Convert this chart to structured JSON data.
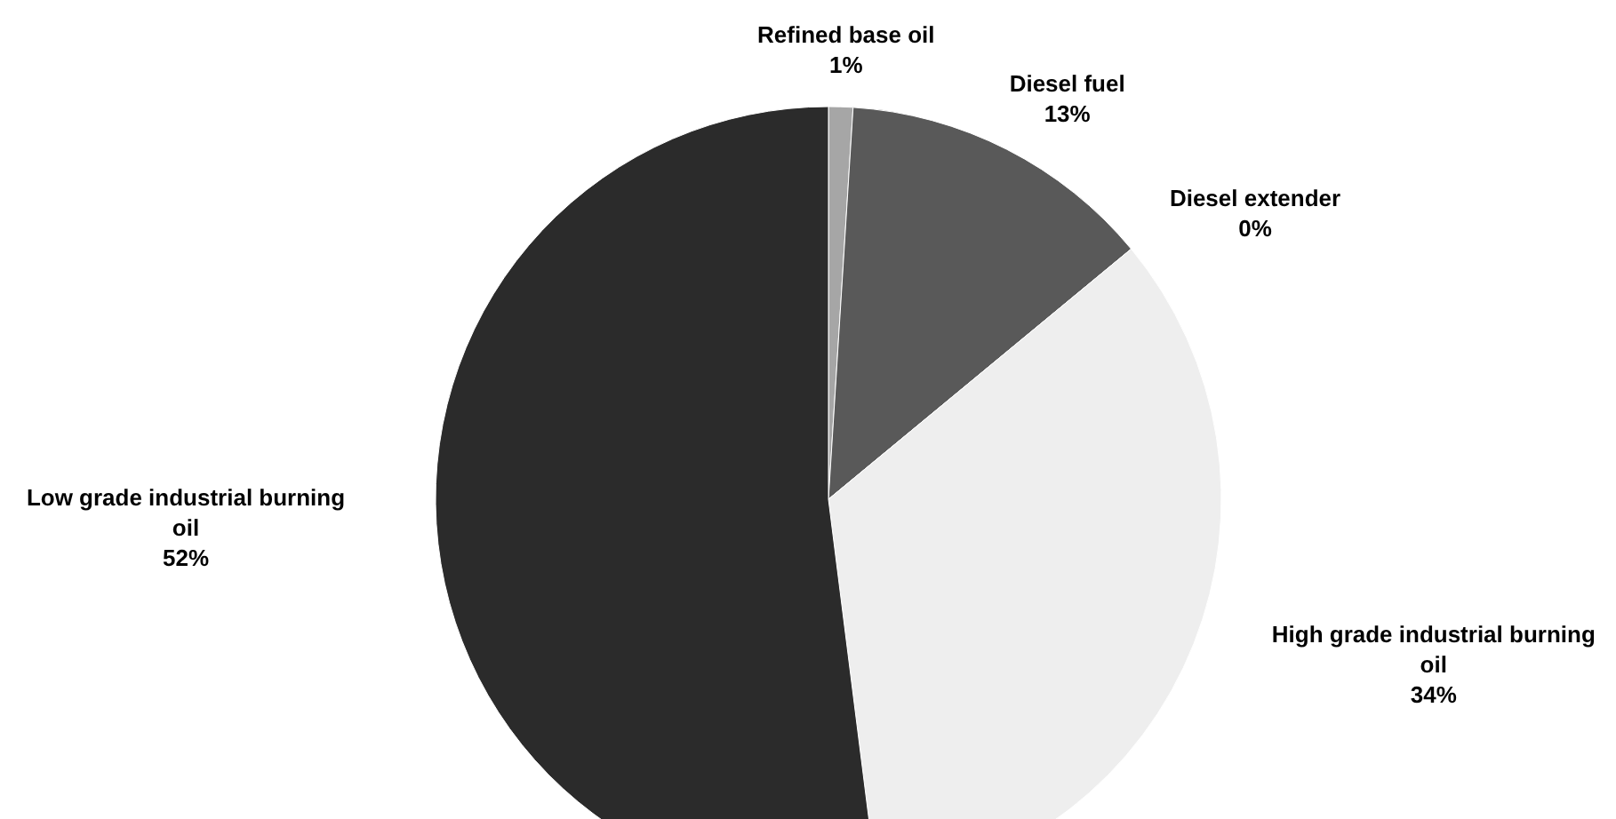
{
  "chart_data": {
    "type": "pie",
    "categories": [
      "Refined base oil",
      "Diesel fuel",
      "Diesel extender",
      "High grade industrial burning oil",
      "Low grade industrial burning oil"
    ],
    "values": [
      1,
      13,
      0,
      34,
      52
    ],
    "value_labels": [
      "1%",
      "13%",
      "0%",
      "34%",
      "52%"
    ],
    "colors": [
      "#a6a6a6",
      "#595959",
      null,
      "#eeeeee",
      "#2b2b2b"
    ]
  }
}
